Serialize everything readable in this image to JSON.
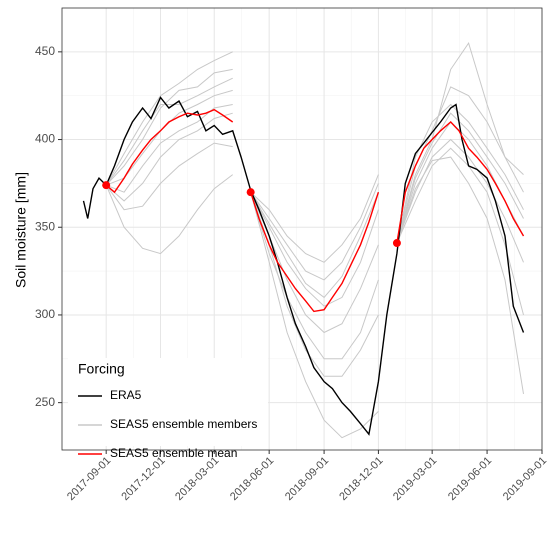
{
  "chart_data": {
    "type": "line",
    "y_label": "Soil moisture [mm]",
    "xlim": [
      "2017-06-19",
      "2019-09-01"
    ],
    "xticks": [
      "2017-09-01",
      "2017-12-01",
      "2018-03-01",
      "2018-06-01",
      "2018-09-01",
      "2018-12-01",
      "2019-03-01",
      "2019-06-01",
      "2019-09-01"
    ],
    "ylim": [
      223,
      475
    ],
    "yticks": [
      250,
      300,
      350,
      400,
      450
    ],
    "grid": true,
    "legend_title": "Forcing",
    "legend_position": "bottom-left",
    "series": [
      {
        "name": "ERA5",
        "color": "#000000",
        "x": [
          "2017-07-25",
          "2017-08-01",
          "2017-08-10",
          "2017-08-20",
          "2017-09-01",
          "2017-09-15",
          "2017-10-01",
          "2017-10-15",
          "2017-11-01",
          "2017-11-15",
          "2017-12-01",
          "2017-12-15",
          "2018-01-01",
          "2018-01-15",
          "2018-02-01",
          "2018-02-15",
          "2018-03-01",
          "2018-03-15",
          "2018-04-01",
          "2018-04-15",
          "2018-05-01",
          "2018-05-15",
          "2018-06-01",
          "2018-06-15",
          "2018-07-01",
          "2018-07-15",
          "2018-08-01",
          "2018-08-15",
          "2018-09-01",
          "2018-09-15",
          "2018-10-01",
          "2018-10-15",
          "2018-11-01",
          "2018-11-15",
          "2018-12-01",
          "2018-12-15",
          "2019-01-01",
          "2019-01-15",
          "2019-02-01",
          "2019-02-15",
          "2019-03-01",
          "2019-03-15",
          "2019-04-01",
          "2019-04-10",
          "2019-04-20",
          "2019-05-01",
          "2019-05-15",
          "2019-06-01",
          "2019-06-15",
          "2019-07-01",
          "2019-07-15",
          "2019-08-01"
        ],
        "values": [
          365,
          355,
          372,
          378,
          374,
          385,
          400,
          410,
          418,
          412,
          424,
          418,
          422,
          413,
          416,
          405,
          408,
          403,
          405,
          390,
          371,
          360,
          345,
          330,
          310,
          295,
          282,
          270,
          262,
          258,
          250,
          245,
          238,
          232,
          262,
          300,
          335,
          375,
          392,
          398,
          404,
          410,
          418,
          420,
          400,
          385,
          383,
          378,
          365,
          345,
          305,
          290
        ]
      },
      {
        "name": "SEAS5 ensemble members",
        "color": "#c8c8c8",
        "forecasts": [
          {
            "x": [
              "2017-09-01",
              "2017-10-01",
              "2017-11-01",
              "2017-12-01",
              "2018-01-01",
              "2018-02-01",
              "2018-03-01",
              "2018-04-01"
            ],
            "members": [
              [
                374,
                350,
                338,
                335,
                345,
                360,
                372,
                380
              ],
              [
                374,
                392,
                410,
                425,
                432,
                440,
                445,
                450
              ],
              [
                374,
                385,
                400,
                418,
                428,
                430,
                438,
                440
              ],
              [
                374,
                365,
                375,
                390,
                400,
                405,
                412,
                415
              ],
              [
                374,
                378,
                392,
                405,
                415,
                420,
                425,
                428
              ],
              [
                374,
                360,
                362,
                375,
                385,
                392,
                398,
                396
              ],
              [
                374,
                388,
                405,
                420,
                420,
                425,
                430,
                435
              ],
              [
                374,
                370,
                385,
                398,
                405,
                410,
                418,
                420
              ]
            ]
          },
          {
            "x": [
              "2018-05-01",
              "2018-06-01",
              "2018-07-01",
              "2018-08-01",
              "2018-09-01",
              "2018-10-01",
              "2018-11-01",
              "2018-12-01"
            ],
            "members": [
              [
                370,
                330,
                290,
                262,
                240,
                230,
                235,
                245
              ],
              [
                370,
                350,
                330,
                315,
                305,
                310,
                330,
                360
              ],
              [
                370,
                345,
                320,
                300,
                290,
                295,
                315,
                340
              ],
              [
                370,
                360,
                345,
                335,
                330,
                340,
                355,
                380
              ],
              [
                370,
                340,
                305,
                280,
                265,
                265,
                280,
                300
              ],
              [
                370,
                355,
                340,
                325,
                320,
                330,
                350,
                375
              ],
              [
                370,
                335,
                310,
                290,
                275,
                275,
                290,
                320
              ],
              [
                370,
                352,
                335,
                318,
                310,
                322,
                345,
                370
              ]
            ]
          },
          {
            "x": [
              "2019-01-01",
              "2019-02-01",
              "2019-03-01",
              "2019-04-01",
              "2019-05-01",
              "2019-06-01",
              "2019-07-01",
              "2019-08-01"
            ],
            "members": [
              [
                341,
                380,
                400,
                440,
                455,
                420,
                390,
                370
              ],
              [
                341,
                375,
                395,
                410,
                400,
                385,
                365,
                345
              ],
              [
                341,
                390,
                410,
                420,
                410,
                395,
                380,
                360
              ],
              [
                341,
                365,
                385,
                395,
                385,
                370,
                340,
                300
              ],
              [
                341,
                385,
                405,
                430,
                425,
                410,
                390,
                380
              ],
              [
                341,
                370,
                390,
                400,
                390,
                375,
                355,
                330
              ],
              [
                341,
                378,
                398,
                415,
                405,
                390,
                375,
                355
              ],
              [
                341,
                372,
                388,
                390,
                375,
                355,
                320,
                255
              ]
            ]
          }
        ]
      },
      {
        "name": "SEAS5 ensemble mean",
        "color": "#ff0000",
        "x": [
          "2017-09-01",
          "2017-09-15",
          "2017-10-01",
          "2017-10-15",
          "2017-11-01",
          "2017-11-15",
          "2017-12-01",
          "2017-12-15",
          "2018-01-01",
          "2018-01-15",
          "2018-02-01",
          "2018-02-15",
          "2018-03-01",
          "2018-03-15",
          "2018-04-01",
          "2018-04-15",
          "2018-05-01",
          "2018-05-15",
          "2018-06-01",
          "2018-06-15",
          "2018-07-01",
          "2018-07-15",
          "2018-08-01",
          "2018-08-15",
          "2018-09-01",
          "2018-09-15",
          "2018-10-01",
          "2018-10-15",
          "2018-11-01",
          "2018-11-15",
          "2018-12-01",
          "2018-12-15",
          "2019-01-01",
          "2019-01-15",
          "2019-02-01",
          "2019-02-15",
          "2019-03-01",
          "2019-03-15",
          "2019-04-01",
          "2019-04-15",
          "2019-05-01",
          "2019-05-15",
          "2019-06-01",
          "2019-06-15",
          "2019-07-01",
          "2019-07-15",
          "2019-08-01"
        ],
        "values": [
          374,
          370,
          378,
          386,
          394,
          400,
          405,
          410,
          413,
          415,
          414,
          415,
          417,
          414,
          410,
          null,
          370,
          355,
          340,
          330,
          322,
          315,
          308,
          302,
          303,
          310,
          318,
          328,
          340,
          353,
          370,
          null,
          341,
          370,
          385,
          395,
          400,
          405,
          410,
          405,
          395,
          390,
          383,
          375,
          365,
          355,
          345
        ]
      }
    ]
  }
}
